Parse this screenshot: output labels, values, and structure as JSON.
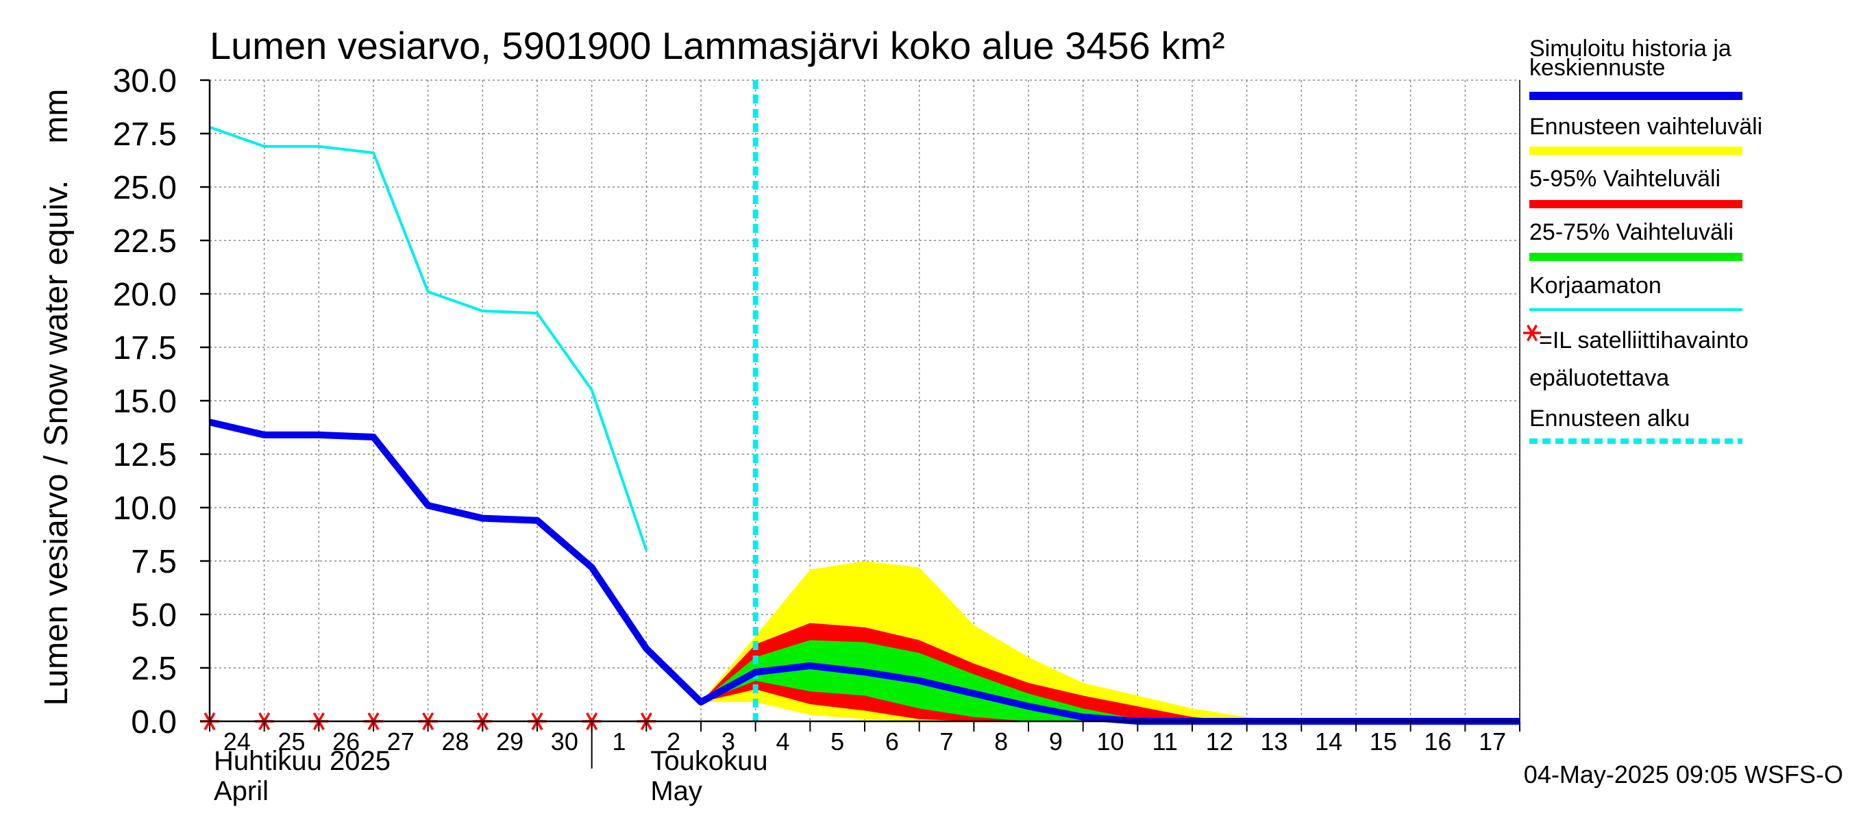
{
  "chart_data": {
    "type": "area",
    "title": "Lumen vesiarvo, 5901900 Lammasjärvi koko alue 3456 km²",
    "ylabel": "Lumen vesiarvo / Snow water equiv.    mm",
    "ylim": [
      0,
      30
    ],
    "yticks": [
      "0.0",
      "2.5",
      "5.0",
      "7.5",
      "10.0",
      "12.5",
      "15.0",
      "17.5",
      "20.0",
      "22.5",
      "25.0",
      "27.5",
      "30.0"
    ],
    "xlim": [
      0,
      24
    ],
    "x_tick_labels": [
      {
        "x": 0.5,
        "label": "24"
      },
      {
        "x": 1.5,
        "label": "25"
      },
      {
        "x": 2.5,
        "label": "26"
      },
      {
        "x": 3.5,
        "label": "27"
      },
      {
        "x": 4.5,
        "label": "28"
      },
      {
        "x": 5.5,
        "label": "29"
      },
      {
        "x": 6.5,
        "label": "30"
      },
      {
        "x": 7.5,
        "label": "1"
      },
      {
        "x": 8.5,
        "label": "2"
      },
      {
        "x": 9.5,
        "label": "3"
      },
      {
        "x": 10.5,
        "label": "4"
      },
      {
        "x": 11.5,
        "label": "5"
      },
      {
        "x": 12.5,
        "label": "6"
      },
      {
        "x": 13.5,
        "label": "7"
      },
      {
        "x": 14.5,
        "label": "8"
      },
      {
        "x": 15.5,
        "label": "9"
      },
      {
        "x": 16.5,
        "label": "10"
      },
      {
        "x": 17.5,
        "label": "11"
      },
      {
        "x": 18.5,
        "label": "12"
      },
      {
        "x": 19.5,
        "label": "13"
      },
      {
        "x": 20.5,
        "label": "14"
      },
      {
        "x": 21.5,
        "label": "15"
      },
      {
        "x": 22.5,
        "label": "16"
      },
      {
        "x": 23.5,
        "label": "17"
      }
    ],
    "month_labels": [
      {
        "x": 0,
        "line1": "Huhtikuu  2025",
        "line2": "April"
      },
      {
        "x": 8,
        "line1": "Toukokuu",
        "line2": "May"
      }
    ],
    "month_separator_x": 7,
    "forecast_start_x": 10,
    "bands": [
      {
        "name": "Ennusteen vaihteluväli",
        "color": "#ffff00",
        "x": [
          9,
          10,
          11,
          12,
          13,
          14,
          15,
          16,
          17,
          18,
          19,
          20,
          21,
          22,
          23,
          24
        ],
        "upper": [
          0.9,
          4.0,
          7.1,
          7.5,
          7.2,
          4.5,
          3.0,
          1.8,
          1.2,
          0.6,
          0.2,
          0.0,
          0.0,
          0.0,
          0.0,
          0.0
        ],
        "lower": [
          0.9,
          0.9,
          0.3,
          0.1,
          0.0,
          0.0,
          0.0,
          0.0,
          0.0,
          0.0,
          0.0,
          0.0,
          0.0,
          0.0,
          0.0,
          0.0
        ]
      },
      {
        "name": "5-95% Vaihteluväli",
        "color": "#ff0000",
        "x": [
          9,
          10,
          11,
          12,
          13,
          14,
          15,
          16,
          17,
          18,
          19,
          20,
          21,
          22,
          23,
          24
        ],
        "upper": [
          0.9,
          3.6,
          4.6,
          4.4,
          3.8,
          2.7,
          1.8,
          1.2,
          0.7,
          0.2,
          0.0,
          0.0,
          0.0,
          0.0,
          0.0,
          0.0
        ],
        "lower": [
          0.9,
          1.5,
          0.8,
          0.5,
          0.1,
          0.0,
          0.0,
          0.0,
          0.0,
          0.0,
          0.0,
          0.0,
          0.0,
          0.0,
          0.0,
          0.0
        ]
      },
      {
        "name": "25-75% Vaihteluväli",
        "color": "#00ee00",
        "x": [
          9,
          10,
          11,
          12,
          13,
          14,
          15,
          16,
          17,
          18,
          19,
          20,
          21,
          22,
          23,
          24
        ],
        "upper": [
          0.9,
          3.0,
          3.8,
          3.7,
          3.2,
          2.2,
          1.3,
          0.6,
          0.1,
          0.0,
          0.0,
          0.0,
          0.0,
          0.0,
          0.0,
          0.0
        ],
        "lower": [
          0.9,
          1.9,
          1.4,
          1.2,
          0.6,
          0.2,
          0.0,
          0.0,
          0.0,
          0.0,
          0.0,
          0.0,
          0.0,
          0.0,
          0.0,
          0.0
        ]
      }
    ],
    "series": [
      {
        "name": "Simuloitu historia ja keskiennuste",
        "color": "#0000ee",
        "x": [
          0,
          1,
          2,
          3,
          4,
          5,
          6,
          7,
          8,
          9,
          10,
          11,
          12,
          13,
          14,
          15,
          16,
          17,
          18,
          19,
          20,
          21,
          22,
          23,
          24
        ],
        "values": [
          14.0,
          13.4,
          13.4,
          13.3,
          10.1,
          9.5,
          9.4,
          7.2,
          3.4,
          0.9,
          2.3,
          2.6,
          2.3,
          1.9,
          1.3,
          0.7,
          0.2,
          0.0,
          0.0,
          0.0,
          0.0,
          0.0,
          0.0,
          0.0,
          0.0
        ]
      },
      {
        "name": "Korjaamaton",
        "color": "#00eeee",
        "x": [
          0,
          1,
          2,
          3,
          4,
          5,
          6,
          7,
          8
        ],
        "values": [
          27.8,
          26.9,
          26.9,
          26.6,
          20.1,
          19.2,
          19.1,
          15.5,
          8.0
        ]
      }
    ],
    "satellite_observations": {
      "name": "IL satelliittihavainto epäluotettava",
      "color": "#ff0000",
      "x": [
        0,
        1,
        2,
        3,
        4,
        5,
        6,
        7,
        8
      ],
      "values": [
        0,
        0,
        0,
        0,
        0,
        0,
        0,
        0,
        0
      ]
    },
    "legend": [
      {
        "lines": [
          "Simuloitu historia ja",
          "keskiennuste"
        ],
        "color": "#0000ee",
        "style": "thick"
      },
      {
        "lines": [
          "Ennusteen vaihteluväli"
        ],
        "color": "#ffff00",
        "style": "thick"
      },
      {
        "lines": [
          "5-95% Vaihteluväli"
        ],
        "color": "#ff0000",
        "style": "thick"
      },
      {
        "lines": [
          "25-75% Vaihteluväli"
        ],
        "color": "#00ee00",
        "style": "thick"
      },
      {
        "lines": [
          "Korjaamaton"
        ],
        "color": "#00eeee",
        "style": "thin"
      },
      {
        "lines": [
          "=IL satelliittihavainto",
          "epäluotettava"
        ],
        "color": "#ff0000",
        "style": "star"
      },
      {
        "lines": [
          "Ennusteen alku"
        ],
        "color": "#00eeee",
        "style": "dashed"
      }
    ],
    "legend_placement": "right",
    "footer": "04-May-2025 09:05 WSFS-O",
    "grid": true
  }
}
